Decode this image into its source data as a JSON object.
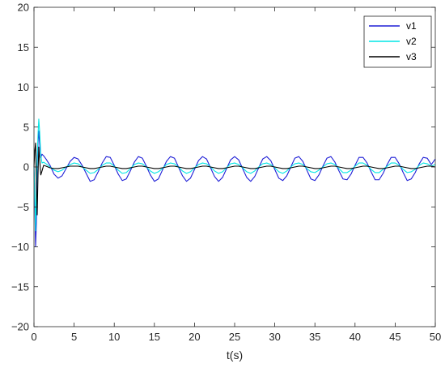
{
  "chart_data": {
    "type": "line",
    "title": "",
    "xlabel": "t(s)",
    "ylabel": "",
    "xlim": [
      0,
      50
    ],
    "ylim": [
      -20,
      20
    ],
    "xticks": [
      0,
      5,
      10,
      15,
      20,
      25,
      30,
      35,
      40,
      45,
      50
    ],
    "yticks": [
      -20,
      -15,
      -10,
      -5,
      0,
      5,
      10,
      15,
      20
    ],
    "xtick_labels": [
      "0",
      "5",
      "10",
      "15",
      "20",
      "25",
      "30",
      "35",
      "40",
      "45",
      "50"
    ],
    "ytick_labels": [
      "−20",
      "−15",
      "−10",
      "−5",
      "0",
      "5",
      "10",
      "15",
      "20"
    ],
    "grid": false,
    "legend_position": "top-right",
    "series": [
      {
        "name": "v1",
        "color": "#1f1fd6",
        "x": [
          0,
          0.1,
          0.2,
          0.3,
          0.4,
          0.5,
          0.6,
          0.7,
          0.85,
          1.0,
          1.2,
          1.5,
          2.0,
          2.5,
          3.0,
          3.5,
          4.0,
          4.5,
          5.0,
          5.5,
          6.0,
          6.5,
          7.0,
          7.5,
          8.0,
          8.5,
          9.0,
          9.5,
          10.0,
          10.5,
          11.0,
          11.5,
          12.0,
          12.5,
          13.0,
          13.5,
          14.0,
          14.5,
          15.0,
          15.5,
          16.0,
          16.5,
          17.0,
          17.5,
          18.0,
          18.5,
          19.0,
          19.5,
          20.0,
          20.5,
          21.0,
          21.5,
          22.0,
          22.5,
          23.0,
          23.5,
          24.0,
          24.5,
          25.0,
          25.5,
          26.0,
          26.5,
          27.0,
          27.5,
          28.0,
          28.5,
          29.0,
          29.5,
          30.0,
          30.5,
          31.0,
          31.5,
          32.0,
          32.5,
          33.0,
          33.5,
          34.0,
          34.5,
          35.0,
          35.5,
          36.0,
          36.5,
          37.0,
          37.5,
          38.0,
          38.5,
          39.0,
          39.5,
          40.0,
          40.5,
          41.0,
          41.5,
          42.0,
          42.5,
          43.0,
          43.5,
          44.0,
          44.5,
          45.0,
          45.5,
          46.0,
          46.5,
          47.0,
          47.5,
          48.0,
          48.5,
          49.0,
          49.5,
          50.0
        ],
        "y": [
          0,
          -4,
          -10,
          -7,
          0,
          3,
          4.5,
          3,
          1.2,
          1.6,
          1.4,
          1.0,
          0.2,
          -0.9,
          -1.4,
          -1.1,
          -0.2,
          0.7,
          1.2,
          1.0,
          0.2,
          -0.8,
          -1.8,
          -1.6,
          -0.6,
          0.5,
          1.3,
          1.2,
          0.2,
          -0.9,
          -1.7,
          -1.5,
          -0.5,
          0.6,
          1.3,
          1.1,
          0.1,
          -1.0,
          -1.8,
          -1.5,
          -0.4,
          0.7,
          1.3,
          1.1,
          0.0,
          -1.1,
          -1.8,
          -1.4,
          -0.3,
          0.8,
          1.3,
          1.0,
          -0.1,
          -1.2,
          -1.8,
          -1.3,
          -0.2,
          0.9,
          1.3,
          0.9,
          -0.2,
          -1.3,
          -1.8,
          -1.2,
          -0.1,
          1.0,
          1.3,
          0.8,
          -0.3,
          -1.4,
          -1.7,
          -1.1,
          0.0,
          1.1,
          1.3,
          0.7,
          -0.4,
          -1.5,
          -1.7,
          -1.0,
          0.1,
          1.1,
          1.3,
          0.6,
          -0.5,
          -1.5,
          -1.6,
          -0.9,
          0.2,
          1.2,
          1.2,
          0.5,
          -0.6,
          -1.6,
          -1.6,
          -0.8,
          0.3,
          1.2,
          1.2,
          0.4,
          -0.7,
          -1.7,
          -1.5,
          -0.7,
          0.4,
          1.2,
          1.1,
          0.3,
          1.0
        ]
      },
      {
        "name": "v2",
        "color": "#00e5e5",
        "x": [
          0,
          0.1,
          0.2,
          0.3,
          0.4,
          0.5,
          0.6,
          0.7,
          0.85,
          1.0,
          1.2,
          1.5,
          2.0,
          2.5,
          3.0,
          3.5,
          4.0,
          4.5,
          5.0,
          5.5,
          6.0,
          6.5,
          7.0,
          7.5,
          8.0,
          8.5,
          9.0,
          9.5,
          10.0,
          10.5,
          11.0,
          11.5,
          12.0,
          12.5,
          13.0,
          13.5,
          14.0,
          14.5,
          15.0,
          15.5,
          16.0,
          16.5,
          17.0,
          17.5,
          18.0,
          18.5,
          19.0,
          19.5,
          20.0,
          20.5,
          21.0,
          21.5,
          22.0,
          22.5,
          23.0,
          23.5,
          24.0,
          24.5,
          25.0,
          25.5,
          26.0,
          26.5,
          27.0,
          27.5,
          28.0,
          28.5,
          29.0,
          29.5,
          30.0,
          30.5,
          31.0,
          31.5,
          32.0,
          32.5,
          33.0,
          33.5,
          34.0,
          34.5,
          35.0,
          35.5,
          36.0,
          36.5,
          37.0,
          37.5,
          38.0,
          38.5,
          39.0,
          39.5,
          40.0,
          40.5,
          41.0,
          41.5,
          42.0,
          42.5,
          43.0,
          43.5,
          44.0,
          44.5,
          45.0,
          45.5,
          46.0,
          46.5,
          47.0,
          47.5,
          48.0,
          48.5,
          49.0,
          49.5,
          50.0
        ],
        "y": [
          0,
          -3,
          -8,
          -3,
          1,
          4,
          6,
          4.5,
          1.5,
          0.5,
          0.6,
          0.4,
          0.0,
          -0.4,
          -0.6,
          -0.4,
          0.0,
          0.3,
          0.5,
          0.4,
          0.0,
          -0.4,
          -0.8,
          -0.7,
          -0.3,
          0.2,
          0.5,
          0.5,
          0.1,
          -0.4,
          -0.8,
          -0.7,
          -0.2,
          0.3,
          0.5,
          0.4,
          0.0,
          -0.5,
          -0.8,
          -0.6,
          -0.2,
          0.3,
          0.5,
          0.4,
          0.0,
          -0.5,
          -0.8,
          -0.6,
          -0.1,
          0.3,
          0.5,
          0.4,
          0.0,
          -0.5,
          -0.8,
          -0.6,
          -0.1,
          0.4,
          0.5,
          0.3,
          -0.1,
          -0.6,
          -0.8,
          -0.5,
          0.0,
          0.4,
          0.5,
          0.3,
          -0.1,
          -0.6,
          -0.8,
          -0.5,
          0.0,
          0.4,
          0.5,
          0.3,
          -0.2,
          -0.6,
          -0.7,
          -0.4,
          0.0,
          0.4,
          0.5,
          0.3,
          -0.2,
          -0.7,
          -0.7,
          -0.4,
          0.1,
          0.5,
          0.5,
          0.2,
          -0.3,
          -0.7,
          -0.7,
          -0.3,
          0.1,
          0.5,
          0.5,
          0.2,
          -0.3,
          -0.7,
          -0.6,
          -0.3,
          0.2,
          0.5,
          0.4,
          0.1,
          0.3
        ]
      },
      {
        "name": "v3",
        "color": "#000000",
        "x": [
          0,
          0.1,
          0.2,
          0.3,
          0.4,
          0.5,
          0.6,
          0.7,
          0.85,
          1.0,
          1.2,
          1.5,
          2.0,
          2.5,
          3.0,
          3.5,
          4.0,
          4.5,
          5.0,
          5.5,
          6.0,
          6.5,
          7.0,
          7.5,
          8.0,
          8.5,
          9.0,
          9.5,
          10.0,
          10.5,
          11.0,
          11.5,
          12.0,
          12.5,
          13.0,
          13.5,
          14.0,
          14.5,
          15.0,
          15.5,
          16.0,
          16.5,
          17.0,
          17.5,
          18.0,
          18.5,
          19.0,
          19.5,
          20.0,
          20.5,
          21.0,
          21.5,
          22.0,
          22.5,
          23.0,
          23.5,
          24.0,
          24.5,
          25.0,
          25.5,
          26.0,
          26.5,
          27.0,
          27.5,
          28.0,
          28.5,
          29.0,
          29.5,
          30.0,
          30.5,
          31.0,
          31.5,
          32.0,
          32.5,
          33.0,
          33.5,
          34.0,
          34.5,
          35.0,
          35.5,
          36.0,
          36.5,
          37.0,
          37.5,
          38.0,
          38.5,
          39.0,
          39.5,
          40.0,
          40.5,
          41.0,
          41.5,
          42.0,
          42.5,
          43.0,
          43.5,
          44.0,
          44.5,
          45.0,
          45.5,
          46.0,
          46.5,
          47.0,
          47.5,
          48.0,
          48.5,
          49.0,
          49.5,
          50.0
        ],
        "y": [
          0,
          2,
          3,
          -2,
          -6,
          -1,
          2.5,
          1,
          -1,
          -0.5,
          0.2,
          0.1,
          -0.1,
          -0.2,
          -0.2,
          -0.1,
          0.0,
          0.1,
          0.1,
          0.1,
          0.0,
          -0.1,
          -0.2,
          -0.2,
          -0.1,
          0.0,
          0.1,
          0.1,
          0.0,
          -0.1,
          -0.2,
          -0.2,
          -0.1,
          0.0,
          0.1,
          0.1,
          0.0,
          -0.1,
          -0.2,
          -0.2,
          -0.1,
          0.0,
          0.1,
          0.1,
          0.0,
          -0.1,
          -0.2,
          -0.2,
          -0.1,
          0.0,
          0.1,
          0.1,
          0.0,
          -0.1,
          -0.2,
          -0.2,
          -0.1,
          0.0,
          0.1,
          0.1,
          0.0,
          -0.1,
          -0.2,
          -0.2,
          -0.1,
          0.0,
          0.1,
          0.1,
          0.0,
          -0.1,
          -0.2,
          -0.2,
          -0.1,
          0.0,
          0.1,
          0.1,
          0.0,
          -0.1,
          -0.2,
          -0.2,
          -0.1,
          0.0,
          0.1,
          0.1,
          0.0,
          -0.1,
          -0.2,
          -0.2,
          -0.1,
          0.0,
          0.1,
          0.1,
          0.0,
          -0.1,
          -0.2,
          -0.2,
          -0.1,
          0.0,
          0.1,
          0.1,
          0.0,
          -0.1,
          -0.2,
          -0.2,
          -0.1,
          0.0,
          0.1,
          0.1,
          0.0
        ]
      }
    ]
  }
}
